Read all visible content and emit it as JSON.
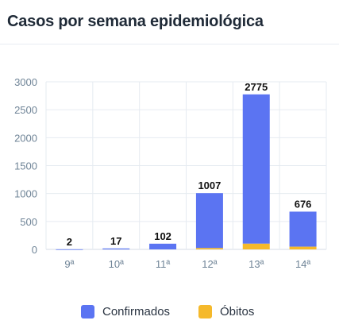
{
  "header": {
    "title": "Casos por semana epidemiológica"
  },
  "colors": {
    "confirmados": "#5b74f2",
    "obitos": "#f5b92b",
    "grid": "#e6ebf1",
    "axis": "#d4dbe4",
    "tick_text": "#6f8497",
    "label_text": "#111111"
  },
  "chart_data": {
    "type": "bar",
    "stacked": true,
    "title": "",
    "xlabel": "",
    "ylabel": "",
    "categories": [
      "9ª",
      "10ª",
      "11ª",
      "12ª",
      "13ª",
      "14ª"
    ],
    "totals": [
      2,
      17,
      102,
      1007,
      2775,
      676
    ],
    "total_labels": [
      "2",
      "17",
      "102",
      "1007",
      "2775",
      "676"
    ],
    "series": [
      {
        "name": "Confirmados",
        "values": [
          2,
          17,
          102,
          983,
          2673,
          628
        ],
        "color": "#5b74f2"
      },
      {
        "name": "Óbitos",
        "values": [
          0,
          0,
          0,
          24,
          102,
          48
        ],
        "color": "#f5b92b"
      }
    ],
    "yticks": [
      0,
      500,
      1000,
      1500,
      2000,
      2500,
      3000
    ],
    "ytick_labels": [
      "0",
      "500",
      "1000",
      "1500",
      "2000",
      "2500",
      "3000"
    ],
    "ylim": [
      0,
      3000
    ],
    "grid": true,
    "legend_position": "bottom"
  },
  "legend": {
    "confirmados": "Confirmados",
    "obitos": "Óbitos"
  }
}
